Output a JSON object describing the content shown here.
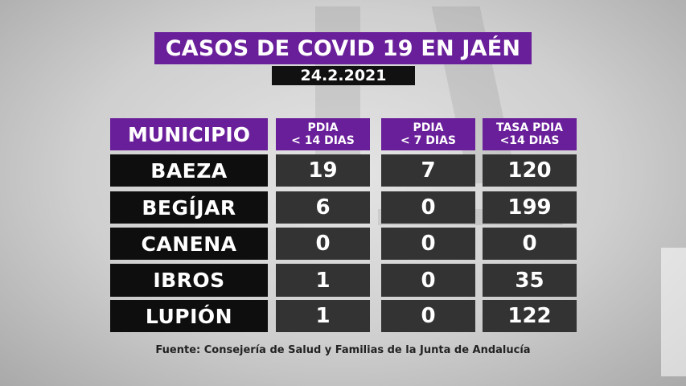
{
  "title": "CASOS DE COVID 19 EN JAÉN",
  "date": "24.2.2021",
  "table": {
    "headers": {
      "municipio": "MUNICIPIO",
      "pdia14_line1": "PDIA",
      "pdia14_line2": "< 14 DIAS",
      "pdia7_line1": "PDIA",
      "pdia7_line2": "< 7 DIAS",
      "tasa_line1": "TASA PDIA",
      "tasa_line2": "<14 DIAS"
    },
    "rows": [
      {
        "municipio": "BAEZA",
        "pdia14": "19",
        "pdia7": "7",
        "tasa": "120"
      },
      {
        "municipio": "BEGÍJAR",
        "pdia14": "6",
        "pdia7": "0",
        "tasa": "199"
      },
      {
        "municipio": "CANENA",
        "pdia14": "0",
        "pdia7": "0",
        "tasa": "0"
      },
      {
        "municipio": "IBROS",
        "pdia14": "1",
        "pdia7": "0",
        "tasa": "35"
      },
      {
        "municipio": "LUPIÓN",
        "pdia14": "1",
        "pdia7": "0",
        "tasa": "122"
      }
    ]
  },
  "source": "Fuente: Consejería de Salud y Familias de la Junta de Andalucía",
  "colors": {
    "purple": "#6a1f9a",
    "dark": "#0e0e0e",
    "cell": "#333333"
  }
}
